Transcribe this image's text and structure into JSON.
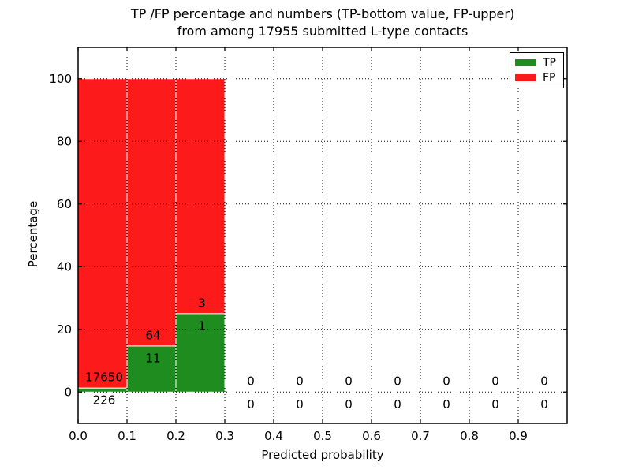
{
  "colors": {
    "background": "#ffffff",
    "axes": "#000000",
    "grid": "#000000",
    "bar_edge": "#ffffff",
    "text": "#000000"
  },
  "chart_data": {
    "type": "bar",
    "stacked": true,
    "title_lines": [
      "TP /FP percentage and numbers (TP-bottom value, FP-upper)",
      "from among 17955 submitted L-type contacts"
    ],
    "total_submitted_contacts": 17955,
    "xlabel": "Predicted probability",
    "ylabel": "Percentage",
    "xlim": [
      0.0,
      1.0
    ],
    "ylim": [
      -10,
      110
    ],
    "xticks": [
      "0.0",
      "0.1",
      "0.2",
      "0.3",
      "0.4",
      "0.5",
      "0.6",
      "0.7",
      "0.8",
      "0.9"
    ],
    "yticks": [
      "0",
      "20",
      "40",
      "60",
      "80",
      "100"
    ],
    "grid": "dotted",
    "bin_width": 0.1,
    "legend": {
      "position": "upper right",
      "entries": [
        {
          "label": "TP",
          "color": "#1e8c1e"
        },
        {
          "label": "FP",
          "color": "#fd1a1a"
        }
      ]
    },
    "bins": [
      {
        "range": [
          0.0,
          0.1
        ],
        "tp_count": 226,
        "fp_count": 17650,
        "tp_pct": 1.264,
        "fp_pct": 98.736
      },
      {
        "range": [
          0.1,
          0.2
        ],
        "tp_count": 11,
        "fp_count": 64,
        "tp_pct": 14.667,
        "fp_pct": 85.333
      },
      {
        "range": [
          0.2,
          0.3
        ],
        "tp_count": 1,
        "fp_count": 3,
        "tp_pct": 25.0,
        "fp_pct": 75.0
      },
      {
        "range": [
          0.3,
          0.4
        ],
        "tp_count": 0,
        "fp_count": 0,
        "tp_pct": 0,
        "fp_pct": 0
      },
      {
        "range": [
          0.4,
          0.5
        ],
        "tp_count": 0,
        "fp_count": 0,
        "tp_pct": 0,
        "fp_pct": 0
      },
      {
        "range": [
          0.5,
          0.6
        ],
        "tp_count": 0,
        "fp_count": 0,
        "tp_pct": 0,
        "fp_pct": 0
      },
      {
        "range": [
          0.6,
          0.7
        ],
        "tp_count": 0,
        "fp_count": 0,
        "tp_pct": 0,
        "fp_pct": 0
      },
      {
        "range": [
          0.7,
          0.8
        ],
        "tp_count": 0,
        "fp_count": 0,
        "tp_pct": 0,
        "fp_pct": 0
      },
      {
        "range": [
          0.8,
          0.9
        ],
        "tp_count": 0,
        "fp_count": 0,
        "tp_pct": 0,
        "fp_pct": 0
      },
      {
        "range": [
          0.9,
          1.0
        ],
        "tp_count": 0,
        "fp_count": 0,
        "tp_pct": 0,
        "fp_pct": 0
      }
    ]
  }
}
